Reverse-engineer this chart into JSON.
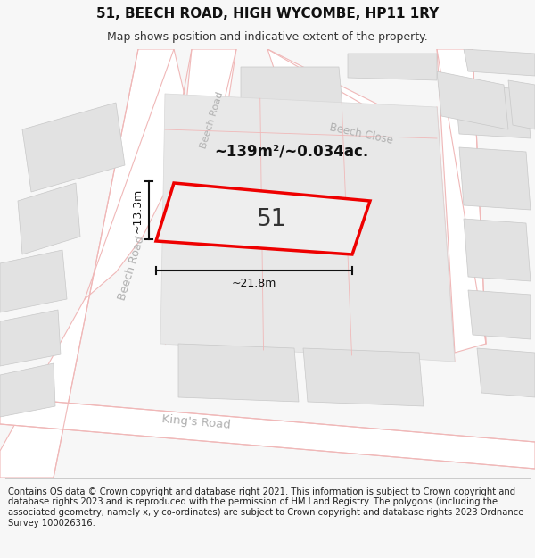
{
  "title": "51, BEECH ROAD, HIGH WYCOMBE, HP11 1RY",
  "subtitle": "Map shows position and indicative extent of the property.",
  "footer": "Contains OS data © Crown copyright and database right 2021. This information is subject to Crown copyright and database rights 2023 and is reproduced with the permission of HM Land Registry. The polygons (including the associated geometry, namely x, y co-ordinates) are subject to Crown copyright and database rights 2023 Ordnance Survey 100026316.",
  "bg_color": "#f7f7f7",
  "map_bg": "#f2f2f2",
  "road_fill": "#ffffff",
  "building_fill": "#e2e2e2",
  "building_edge": "#c8c8c8",
  "plot_fill": "#e8e8e8",
  "plot_edge": "#ee0000",
  "road_line": "#f0b8b8",
  "road_line2": "#e8a8a8",
  "label_color": "#333333",
  "road_label_color": "#b0b0b0",
  "dim_color": "#111111",
  "label_51": "51",
  "area_label": "~139m²/~0.034ac.",
  "dim_width": "~21.8m",
  "dim_height": "~13.3m",
  "beech_road_label": "Beech Road",
  "kings_road_label": "King's Road",
  "beech_close_label": "Beech Close",
  "title_fontsize": 11,
  "subtitle_fontsize": 9,
  "footer_fontsize": 7.2
}
